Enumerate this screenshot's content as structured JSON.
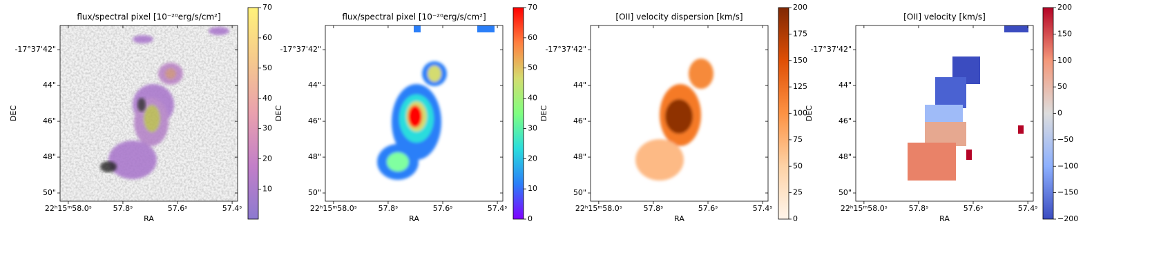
{
  "chart_data": [
    {
      "type": "heatmap",
      "title": "flux/spectral pixel [10⁻²⁰erg/s/cm²]",
      "xlabel": "RA",
      "ylabel": "DEC",
      "xlim": [
        58.03,
        57.38
      ],
      "ylim": [
        50.46,
        40.65
      ],
      "xticks": [
        {
          "value": 58.0,
          "label": "22ʰ15ᵐ58.0ˢ"
        },
        {
          "value": 57.8,
          "label": "57.8ˢ"
        },
        {
          "value": 57.6,
          "label": "57.6ˢ"
        },
        {
          "value": 57.4,
          "label": "57.4ˢ"
        }
      ],
      "yticks": [
        {
          "value": 42,
          "label": "-17°37'42\""
        },
        {
          "value": 44,
          "label": "44\""
        },
        {
          "value": 46,
          "label": "46\""
        },
        {
          "value": 48,
          "label": "48\""
        },
        {
          "value": 50,
          "label": "50\""
        }
      ],
      "colorbar": {
        "lim": [
          0.1,
          70
        ],
        "ticks": [
          10,
          20,
          30,
          40,
          50,
          60,
          70
        ],
        "colors": [
          "#8c7ad0",
          "#c27fc8",
          "#e9a0ae",
          "#f6c98d",
          "#fff27a"
        ]
      }
    },
    {
      "type": "heatmap",
      "title": "flux/spectral pixel [10⁻²⁰erg/s/cm²]",
      "xlabel": "RA",
      "ylabel": "DEC",
      "xlim": [
        58.03,
        57.38
      ],
      "ylim": [
        50.46,
        40.65
      ],
      "xticks": [
        {
          "value": 58.0,
          "label": "22ʰ15ᵐ58.0ˢ"
        },
        {
          "value": 57.8,
          "label": "57.8ˢ"
        },
        {
          "value": 57.6,
          "label": "57.6ˢ"
        },
        {
          "value": 57.4,
          "label": "57.4ˢ"
        }
      ],
      "yticks": [
        {
          "value": 42,
          "label": "-17°37'42\""
        },
        {
          "value": 44,
          "label": "44\""
        },
        {
          "value": 46,
          "label": "46\""
        },
        {
          "value": 48,
          "label": "48\""
        },
        {
          "value": 50,
          "label": "50\""
        }
      ],
      "colorbar": {
        "lim": [
          0,
          70
        ],
        "ticks": [
          0,
          10,
          20,
          30,
          40,
          50,
          60,
          70
        ],
        "colors": [
          "#8000ff",
          "#2b7ff8",
          "#2adddd",
          "#80ff80",
          "#d4dc6f",
          "#ff8040",
          "#ff0000"
        ]
      }
    },
    {
      "type": "heatmap",
      "title": "[OII] velocity dispersion [km/s]",
      "xlabel": "RA",
      "ylabel": "DEC",
      "xlim": [
        58.03,
        57.38
      ],
      "ylim": [
        50.46,
        40.65
      ],
      "xticks": [
        {
          "value": 58.0,
          "label": "22ʰ15ᵐ58.0ˢ"
        },
        {
          "value": 57.8,
          "label": "57.8ˢ"
        },
        {
          "value": 57.6,
          "label": "57.6ˢ"
        },
        {
          "value": 57.4,
          "label": "57.4ˢ"
        }
      ],
      "yticks": [
        {
          "value": 42,
          "label": "-17°37'42\""
        },
        {
          "value": 44,
          "label": "44\""
        },
        {
          "value": 46,
          "label": "46\""
        },
        {
          "value": 48,
          "label": "48\""
        },
        {
          "value": 50,
          "label": "50\""
        }
      ],
      "colorbar": {
        "lim": [
          0,
          200
        ],
        "ticks": [
          0,
          25,
          50,
          75,
          100,
          125,
          150,
          175,
          200
        ],
        "colors": [
          "#fff5eb",
          "#fdd2a6",
          "#fd9243",
          "#df4f05",
          "#7f2704"
        ]
      }
    },
    {
      "type": "heatmap",
      "title": "[OII] velocity [km/s]",
      "xlabel": "RA",
      "ylabel": "DEC",
      "xlim": [
        58.03,
        57.38
      ],
      "ylim": [
        50.46,
        40.65
      ],
      "xticks": [
        {
          "value": 58.0,
          "label": "22ʰ15ᵐ58.0ˢ"
        },
        {
          "value": 57.8,
          "label": "57.8ˢ"
        },
        {
          "value": 57.6,
          "label": "57.6ˢ"
        },
        {
          "value": 57.4,
          "label": "57.4ˢ"
        }
      ],
      "yticks": [
        {
          "value": 42,
          "label": "-17°37'42\""
        },
        {
          "value": 44,
          "label": "44\""
        },
        {
          "value": 46,
          "label": "46\""
        },
        {
          "value": 48,
          "label": "48\""
        },
        {
          "value": 50,
          "label": "50\""
        }
      ],
      "colorbar": {
        "lim": [
          -200,
          200
        ],
        "ticks": [
          {
            "value": -200,
            "label": "−200"
          },
          {
            "value": -150,
            "label": "−150"
          },
          {
            "value": -100,
            "label": "−100"
          },
          {
            "value": -50,
            "label": "−50"
          },
          0,
          50,
          100,
          150,
          200
        ],
        "colors": [
          "#3b4cc0",
          "#8db0fe",
          "#dddddd",
          "#f4987a",
          "#b40426"
        ]
      }
    }
  ]
}
